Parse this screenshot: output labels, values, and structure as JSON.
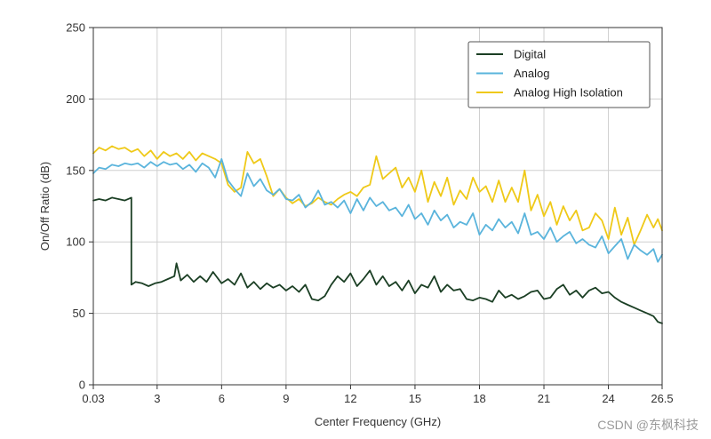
{
  "chart_data": {
    "type": "line",
    "title": "",
    "xlabel": "Center Frequency (GHz)",
    "ylabel": "On/Off Ratio (dB)",
    "xlim": [
      0.03,
      26.5
    ],
    "ylim": [
      0,
      250
    ],
    "xticks": [
      0.03,
      3,
      6,
      9,
      12,
      15,
      18,
      21,
      24,
      26.5
    ],
    "xtick_labels": [
      "0.03",
      "3",
      "6",
      "9",
      "12",
      "15",
      "18",
      "21",
      "24",
      "26.5"
    ],
    "yticks": [
      0,
      50,
      100,
      150,
      200,
      250
    ],
    "ytick_labels": [
      "0",
      "50",
      "100",
      "150",
      "200",
      "250"
    ],
    "grid": true,
    "legend_position": "top-right",
    "series": [
      {
        "name": "Digital",
        "color": "#1b3f24",
        "x": [
          0.03,
          0.3,
          0.6,
          0.9,
          1.2,
          1.5,
          1.8,
          1.8,
          2.0,
          2.3,
          2.6,
          2.9,
          3.2,
          3.5,
          3.8,
          3.9,
          4.1,
          4.4,
          4.7,
          5.0,
          5.3,
          5.6,
          6.0,
          6.3,
          6.6,
          6.9,
          7.2,
          7.5,
          7.8,
          8.1,
          8.4,
          8.7,
          9.0,
          9.3,
          9.6,
          9.9,
          10.2,
          10.5,
          10.8,
          11.1,
          11.4,
          11.7,
          12.0,
          12.3,
          12.6,
          12.9,
          13.2,
          13.5,
          13.8,
          14.1,
          14.4,
          14.7,
          15.0,
          15.3,
          15.6,
          15.9,
          16.2,
          16.5,
          16.8,
          17.1,
          17.4,
          17.7,
          18.0,
          18.3,
          18.6,
          18.9,
          19.2,
          19.5,
          19.8,
          20.1,
          20.4,
          20.7,
          21.0,
          21.3,
          21.6,
          21.9,
          22.2,
          22.5,
          22.8,
          23.1,
          23.4,
          23.7,
          24.0,
          24.3,
          24.6,
          24.9,
          25.2,
          25.5,
          25.8,
          26.1,
          26.3,
          26.5
        ],
        "values": [
          129,
          130,
          129,
          131,
          130,
          129,
          131,
          70,
          72,
          71,
          69,
          71,
          72,
          74,
          76,
          85,
          73,
          77,
          72,
          76,
          72,
          79,
          71,
          74,
          70,
          78,
          68,
          72,
          67,
          71,
          68,
          70,
          66,
          69,
          65,
          70,
          60,
          59,
          62,
          70,
          76,
          72,
          78,
          69,
          74,
          80,
          70,
          76,
          69,
          72,
          66,
          73,
          64,
          70,
          68,
          76,
          65,
          70,
          66,
          67,
          60,
          59,
          61,
          60,
          58,
          66,
          61,
          63,
          60,
          62,
          65,
          66,
          60,
          61,
          67,
          70,
          63,
          66,
          61,
          66,
          68,
          64,
          65,
          61,
          58,
          56,
          54,
          52,
          50,
          48,
          44,
          43
        ]
      },
      {
        "name": "Analog",
        "color": "#5ab4dc",
        "x": [
          0.03,
          0.3,
          0.6,
          0.9,
          1.2,
          1.5,
          1.8,
          2.1,
          2.4,
          2.7,
          3.0,
          3.3,
          3.6,
          3.9,
          4.2,
          4.5,
          4.8,
          5.1,
          5.4,
          5.7,
          6.0,
          6.3,
          6.6,
          6.9,
          7.2,
          7.5,
          7.8,
          8.1,
          8.4,
          8.7,
          9.0,
          9.3,
          9.6,
          9.9,
          10.2,
          10.5,
          10.8,
          11.1,
          11.4,
          11.7,
          12.0,
          12.3,
          12.6,
          12.9,
          13.2,
          13.5,
          13.8,
          14.1,
          14.4,
          14.7,
          15.0,
          15.3,
          15.6,
          15.9,
          16.2,
          16.5,
          16.8,
          17.1,
          17.4,
          17.7,
          18.0,
          18.3,
          18.6,
          18.9,
          19.2,
          19.5,
          19.8,
          20.1,
          20.4,
          20.7,
          21.0,
          21.3,
          21.6,
          21.9,
          22.2,
          22.5,
          22.8,
          23.1,
          23.4,
          23.7,
          24.0,
          24.3,
          24.6,
          24.9,
          25.2,
          25.5,
          25.8,
          26.1,
          26.3,
          26.5
        ],
        "values": [
          148,
          152,
          151,
          154,
          153,
          155,
          154,
          155,
          152,
          156,
          153,
          156,
          154,
          155,
          151,
          154,
          149,
          155,
          152,
          145,
          158,
          143,
          137,
          132,
          148,
          139,
          144,
          136,
          133,
          137,
          130,
          129,
          133,
          124,
          128,
          136,
          126,
          128,
          124,
          129,
          120,
          130,
          122,
          131,
          125,
          128,
          122,
          124,
          118,
          126,
          116,
          120,
          112,
          122,
          115,
          119,
          110,
          114,
          112,
          120,
          105,
          112,
          108,
          116,
          110,
          114,
          106,
          120,
          105,
          107,
          102,
          110,
          100,
          104,
          107,
          99,
          102,
          98,
          96,
          104,
          92,
          97,
          102,
          88,
          98,
          94,
          91,
          95,
          86,
          91
        ]
      },
      {
        "name": "Analog High Isolation",
        "color": "#efc918",
        "x": [
          0.03,
          0.3,
          0.6,
          0.9,
          1.2,
          1.5,
          1.8,
          2.1,
          2.4,
          2.7,
          3.0,
          3.3,
          3.6,
          3.9,
          4.2,
          4.5,
          4.8,
          5.1,
          5.4,
          5.7,
          6.0,
          6.3,
          6.6,
          6.9,
          7.2,
          7.5,
          7.8,
          8.1,
          8.4,
          8.7,
          9.0,
          9.3,
          9.6,
          9.9,
          10.2,
          10.5,
          10.8,
          11.1,
          11.4,
          11.7,
          12.0,
          12.3,
          12.6,
          12.9,
          13.2,
          13.5,
          13.8,
          14.1,
          14.4,
          14.7,
          15.0,
          15.3,
          15.6,
          15.9,
          16.2,
          16.5,
          16.8,
          17.1,
          17.4,
          17.7,
          18.0,
          18.3,
          18.6,
          18.9,
          19.2,
          19.5,
          19.8,
          20.1,
          20.4,
          20.7,
          21.0,
          21.3,
          21.6,
          21.9,
          22.2,
          22.5,
          22.8,
          23.1,
          23.4,
          23.7,
          24.0,
          24.3,
          24.6,
          24.9,
          25.2,
          25.5,
          25.8,
          26.1,
          26.3,
          26.5
        ],
        "values": [
          162,
          166,
          164,
          167,
          165,
          166,
          163,
          165,
          160,
          164,
          158,
          163,
          160,
          162,
          158,
          163,
          157,
          162,
          160,
          158,
          155,
          140,
          135,
          138,
          163,
          155,
          158,
          146,
          132,
          137,
          131,
          127,
          130,
          125,
          127,
          131,
          128,
          126,
          130,
          133,
          135,
          132,
          138,
          140,
          160,
          144,
          148,
          152,
          138,
          145,
          135,
          150,
          128,
          142,
          132,
          145,
          126,
          136,
          130,
          145,
          135,
          139,
          128,
          143,
          128,
          138,
          128,
          150,
          122,
          133,
          118,
          128,
          112,
          125,
          115,
          122,
          108,
          110,
          120,
          115,
          102,
          124,
          105,
          117,
          98,
          108,
          119,
          110,
          116,
          108
        ]
      }
    ]
  },
  "watermark": "CSDN @东枫科技"
}
